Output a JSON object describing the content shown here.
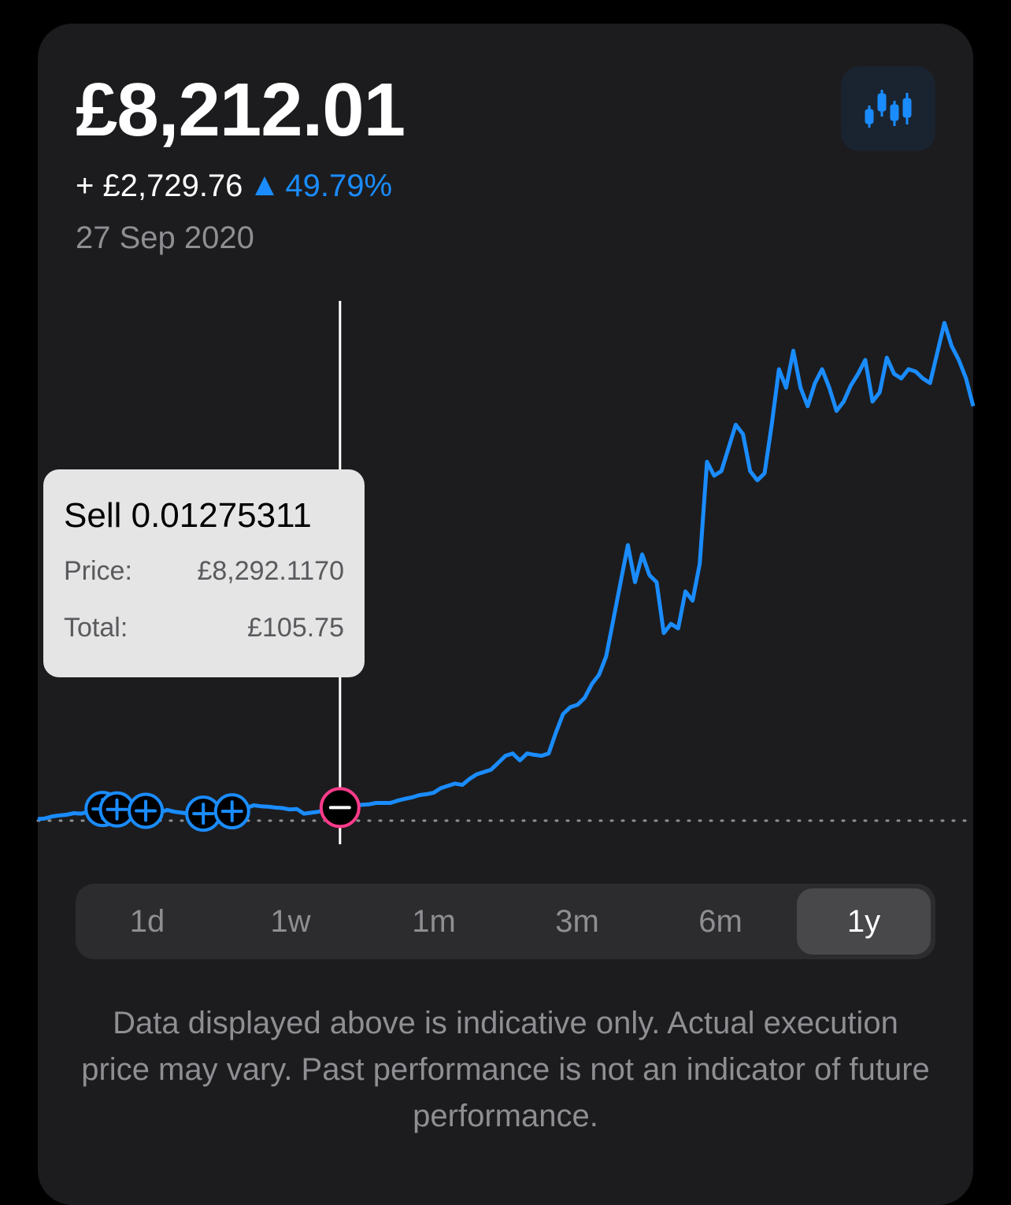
{
  "header": {
    "price": "£8,212.01",
    "change_amount": "+ £2,729.76",
    "change_percent": "49.79%",
    "date": "27 Sep 2020"
  },
  "chart_toggle": {
    "icon": "candlestick-chart-icon",
    "accent": "#1a8cff"
  },
  "tooltip": {
    "title": "Sell 0.01275311",
    "price_label": "Price:",
    "price_value": "£8,292.1170",
    "total_label": "Total:",
    "total_value": "£105.75"
  },
  "colors": {
    "line": "#1a8cff",
    "buy_marker": "#1a8cff",
    "sell_marker": "#ff3b8a",
    "background": "#1c1c1e"
  },
  "range_tabs": [
    {
      "label": "1d",
      "active": false
    },
    {
      "label": "1w",
      "active": false
    },
    {
      "label": "1m",
      "active": false
    },
    {
      "label": "3m",
      "active": false
    },
    {
      "label": "6m",
      "active": false
    },
    {
      "label": "1y",
      "active": true
    }
  ],
  "disclaimer": "Data displayed above is indicative only. Actual execution price may vary. Past performance is not an indicator of future performance.",
  "chart_data": {
    "type": "line",
    "title": "",
    "xlabel": "",
    "ylabel": "",
    "grid": false,
    "baseline_dotted": true,
    "legend": "none",
    "series": [
      {
        "values": [
          5482,
          5495,
          5540,
          5560,
          5575,
          5610,
          5600,
          5635,
          5625,
          5700,
          5650,
          5690,
          5640,
          5710,
          5680,
          5660,
          5650,
          5630,
          5680,
          5640,
          5620,
          5600,
          5620,
          5600,
          5610,
          5620,
          5660,
          5650,
          5710,
          5720,
          5780,
          5760,
          5750,
          5730,
          5720,
          5690,
          5700,
          5600,
          5620,
          5640,
          5690,
          5720,
          5730,
          5760,
          5780,
          5790,
          5800,
          5830,
          5830,
          5830,
          5880,
          5920,
          5950,
          6000,
          6020,
          6050,
          6150,
          6200,
          6250,
          6220,
          6350,
          6450,
          6500,
          6550,
          6700,
          6850,
          6900,
          6750,
          6900,
          6870,
          6850,
          6900,
          7350,
          7750,
          7900,
          7950,
          8100,
          8400,
          8600,
          9000,
          9800,
          10600,
          11400,
          10600,
          11200,
          10750,
          10600,
          9500,
          9700,
          9600,
          10400,
          10200,
          11000,
          13200,
          12900,
          13000,
          13500,
          14000,
          13800,
          13000,
          12800,
          12950,
          14000,
          15200,
          14800,
          15600,
          14800,
          14400,
          14900,
          15200,
          14800,
          14300,
          14500,
          14850,
          15100,
          15400,
          14500,
          14700,
          15450,
          15100,
          15000,
          15200,
          15150,
          15000,
          14900,
          15550,
          16200,
          15700,
          15400,
          15000,
          14400
        ]
      }
    ],
    "markers": [
      {
        "type": "buy",
        "index": 9
      },
      {
        "type": "buy",
        "index": 11
      },
      {
        "type": "buy",
        "index": 15
      },
      {
        "type": "buy",
        "index": 23
      },
      {
        "type": "buy",
        "index": 27
      },
      {
        "type": "sell",
        "index": 42
      }
    ],
    "crosshair_index": 42
  }
}
